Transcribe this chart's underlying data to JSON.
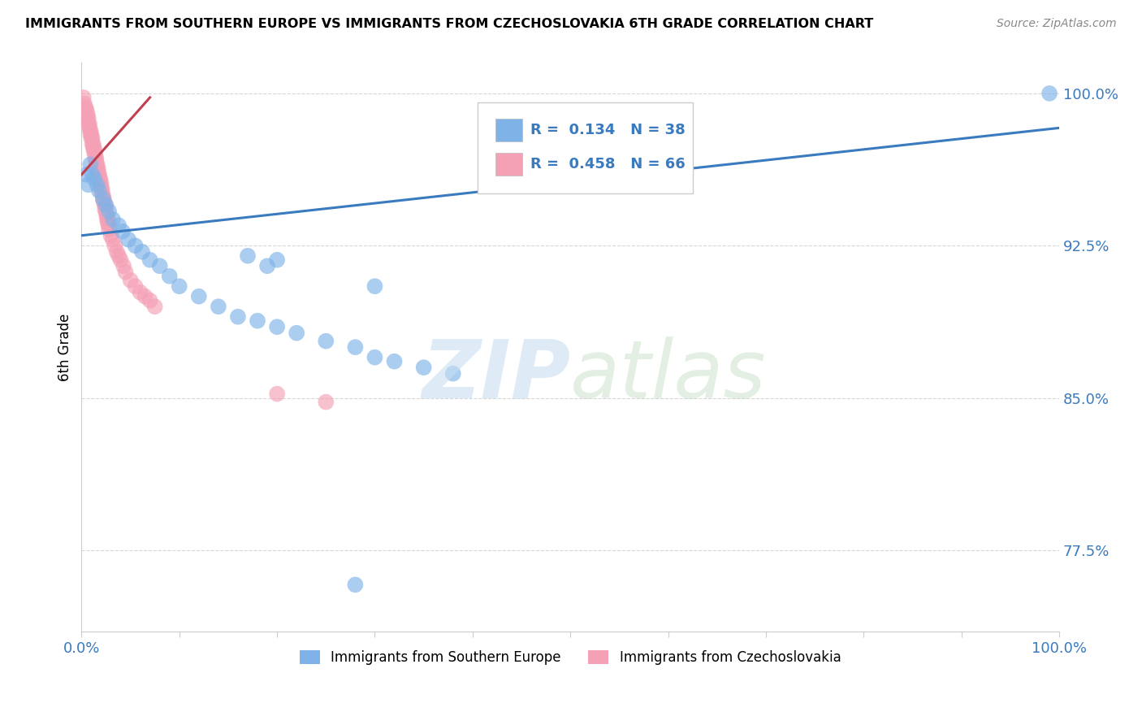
{
  "title": "IMMIGRANTS FROM SOUTHERN EUROPE VS IMMIGRANTS FROM CZECHOSLOVAKIA 6TH GRADE CORRELATION CHART",
  "source": "Source: ZipAtlas.com",
  "ylabel": "6th Grade",
  "xlim": [
    0.0,
    1.0
  ],
  "ylim": [
    0.735,
    1.015
  ],
  "ytick_vals": [
    0.775,
    0.85,
    0.925,
    1.0
  ],
  "ytick_labels": [
    "77.5%",
    "85.0%",
    "92.5%",
    "100.0%"
  ],
  "xtick_vals": [
    0.0,
    0.1,
    0.2,
    0.3,
    0.4,
    0.5,
    0.6,
    0.7,
    0.8,
    0.9,
    1.0
  ],
  "xtick_labels": [
    "0.0%",
    "",
    "",
    "",
    "",
    "",
    "",
    "",
    "",
    "",
    "100.0%"
  ],
  "r_blue": 0.134,
  "n_blue": 38,
  "r_pink": 0.458,
  "n_pink": 66,
  "blue_color": "#7fb3e8",
  "pink_color": "#f4a0b5",
  "blue_line_color": "#3a7abf",
  "pink_line_color": "#c04050",
  "legend_text_color": "#3a7abf",
  "blue_line_x": [
    0.0,
    1.0
  ],
  "blue_line_y": [
    0.93,
    0.983
  ],
  "pink_line_x": [
    0.0,
    0.07
  ],
  "pink_line_y": [
    0.96,
    0.998
  ],
  "blue_scatter_x": [
    0.005,
    0.007,
    0.009,
    0.011,
    0.013,
    0.016,
    0.018,
    0.022,
    0.025,
    0.028,
    0.032,
    0.038,
    0.042,
    0.048,
    0.055,
    0.062,
    0.07,
    0.08,
    0.09,
    0.1,
    0.12,
    0.14,
    0.16,
    0.18,
    0.2,
    0.22,
    0.25,
    0.28,
    0.3,
    0.32,
    0.35,
    0.38,
    0.3,
    0.2,
    0.17,
    0.19,
    0.99,
    0.28
  ],
  "blue_scatter_y": [
    0.96,
    0.955,
    0.965,
    0.96,
    0.958,
    0.955,
    0.952,
    0.948,
    0.945,
    0.942,
    0.938,
    0.935,
    0.932,
    0.928,
    0.925,
    0.922,
    0.918,
    0.915,
    0.91,
    0.905,
    0.9,
    0.895,
    0.89,
    0.888,
    0.885,
    0.882,
    0.878,
    0.875,
    0.87,
    0.868,
    0.865,
    0.862,
    0.905,
    0.918,
    0.92,
    0.915,
    1.0,
    0.758
  ],
  "pink_scatter_x": [
    0.002,
    0.003,
    0.004,
    0.005,
    0.006,
    0.006,
    0.007,
    0.007,
    0.008,
    0.008,
    0.009,
    0.009,
    0.01,
    0.01,
    0.011,
    0.011,
    0.012,
    0.012,
    0.013,
    0.013,
    0.014,
    0.014,
    0.015,
    0.015,
    0.016,
    0.016,
    0.017,
    0.017,
    0.018,
    0.018,
    0.019,
    0.019,
    0.02,
    0.02,
    0.021,
    0.021,
    0.022,
    0.022,
    0.023,
    0.023,
    0.024,
    0.024,
    0.025,
    0.025,
    0.026,
    0.026,
    0.027,
    0.027,
    0.028,
    0.028,
    0.03,
    0.032,
    0.034,
    0.036,
    0.038,
    0.04,
    0.043,
    0.045,
    0.05,
    0.055,
    0.06,
    0.065,
    0.07,
    0.075,
    0.2,
    0.25
  ],
  "pink_scatter_y": [
    0.998,
    0.995,
    0.993,
    0.992,
    0.99,
    0.988,
    0.988,
    0.985,
    0.985,
    0.983,
    0.982,
    0.98,
    0.98,
    0.978,
    0.978,
    0.975,
    0.975,
    0.973,
    0.973,
    0.971,
    0.97,
    0.968,
    0.968,
    0.966,
    0.965,
    0.963,
    0.963,
    0.961,
    0.96,
    0.958,
    0.958,
    0.956,
    0.956,
    0.954,
    0.953,
    0.951,
    0.95,
    0.948,
    0.948,
    0.946,
    0.945,
    0.943,
    0.943,
    0.941,
    0.94,
    0.938,
    0.938,
    0.936,
    0.935,
    0.933,
    0.93,
    0.928,
    0.925,
    0.922,
    0.92,
    0.918,
    0.915,
    0.912,
    0.908,
    0.905,
    0.902,
    0.9,
    0.898,
    0.895,
    0.852,
    0.848
  ]
}
